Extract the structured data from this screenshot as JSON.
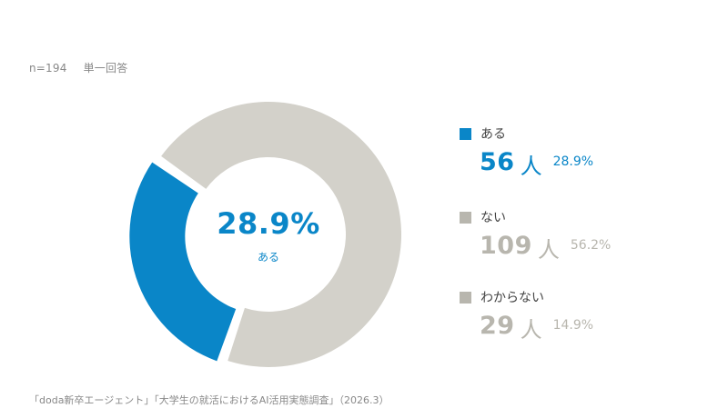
{
  "meta": {
    "sample": "n=194",
    "question_type": "単一回答"
  },
  "center": {
    "value": "28.9%",
    "label": "ある"
  },
  "legend": [
    {
      "label": "ある",
      "count": "56",
      "unit": "人",
      "percent": "28.9%",
      "color": "#0a86c8",
      "text_color": "#0a86c8"
    },
    {
      "label": "ない",
      "count": "109",
      "unit": "人",
      "percent": "56.2%",
      "color": "#b8b6ae",
      "text_color": "#b8b6ae"
    },
    {
      "label": "わからない",
      "count": "29",
      "unit": "人",
      "percent": "14.9%",
      "color": "#b8b6ae",
      "text_color": "#b8b6ae"
    }
  ],
  "source": "「doda新卒エージェント」「大学生の就活におけるAI活用実態調査」（2026.3）",
  "chart_data": {
    "type": "pie",
    "subtype": "donut",
    "title": "",
    "categories": [
      "ある",
      "ない",
      "わからない"
    ],
    "values": [
      56,
      109,
      29
    ],
    "percentages": [
      28.9,
      56.2,
      14.9
    ],
    "colors": [
      "#0a86c8",
      "#d3d1ca",
      "#d3d1ca"
    ],
    "highlighted": "ある",
    "center_text": "28.9%",
    "sample_size": 194,
    "legend_position": "right"
  }
}
